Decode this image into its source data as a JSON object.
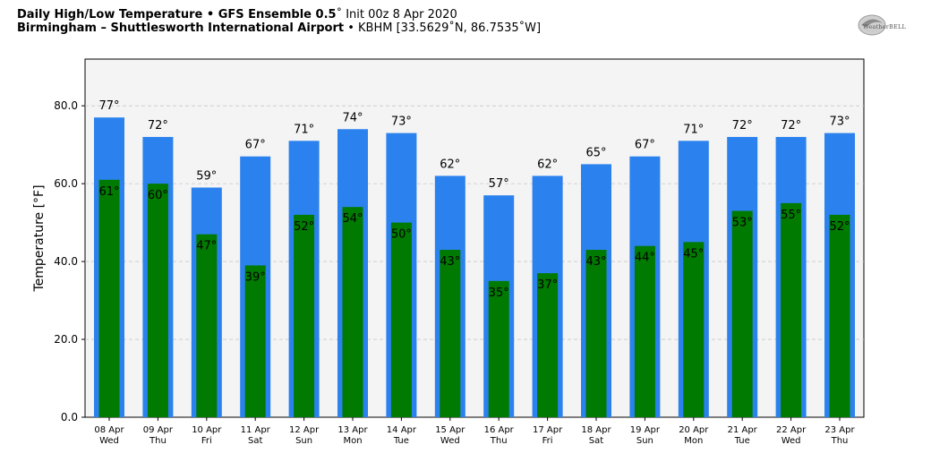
{
  "header": {
    "title_bold": "Daily High/Low Temperature • GFS Ensemble 0.5",
    "title_rest": "˚ Init 00z 8 Apr 2020",
    "subtitle_bold": "Birmingham – Shuttlesworth International Airport",
    "subtitle_rest": " • KBHM [33.5629˚N, 86.7535˚W]"
  },
  "logo": {
    "text": "WeatherBELL",
    "icon": "weatherbell-swirl-logo"
  },
  "colors": {
    "high": "#2b82ee",
    "low": "#007a00",
    "plot_bg": "#f4f4f4",
    "grid": "#c8c8c8"
  },
  "chart_data": {
    "type": "bar",
    "ylabel": "Temperature [°F]",
    "ylim": [
      0,
      92
    ],
    "yticks": [
      "0.0",
      "20.0",
      "40.0",
      "60.0",
      "80.0"
    ],
    "grid": true,
    "categories": [
      {
        "date": "08 Apr",
        "day": "Wed"
      },
      {
        "date": "09 Apr",
        "day": "Thu"
      },
      {
        "date": "10 Apr",
        "day": "Fri"
      },
      {
        "date": "11 Apr",
        "day": "Sat"
      },
      {
        "date": "12 Apr",
        "day": "Sun"
      },
      {
        "date": "13 Apr",
        "day": "Mon"
      },
      {
        "date": "14 Apr",
        "day": "Tue"
      },
      {
        "date": "15 Apr",
        "day": "Wed"
      },
      {
        "date": "16 Apr",
        "day": "Thu"
      },
      {
        "date": "17 Apr",
        "day": "Fri"
      },
      {
        "date": "18 Apr",
        "day": "Sat"
      },
      {
        "date": "19 Apr",
        "day": "Sun"
      },
      {
        "date": "20 Apr",
        "day": "Mon"
      },
      {
        "date": "21 Apr",
        "day": "Tue"
      },
      {
        "date": "22 Apr",
        "day": "Wed"
      },
      {
        "date": "23 Apr",
        "day": "Thu"
      }
    ],
    "series": [
      {
        "key": "high",
        "values": [
          77,
          72,
          59,
          67,
          71,
          74,
          73,
          62,
          57,
          62,
          65,
          67,
          71,
          72,
          72,
          73
        ]
      },
      {
        "key": "low",
        "values": [
          61,
          60,
          47,
          39,
          52,
          54,
          50,
          43,
          35,
          37,
          43,
          44,
          45,
          53,
          55,
          52
        ]
      }
    ],
    "value_suffix": "°"
  }
}
